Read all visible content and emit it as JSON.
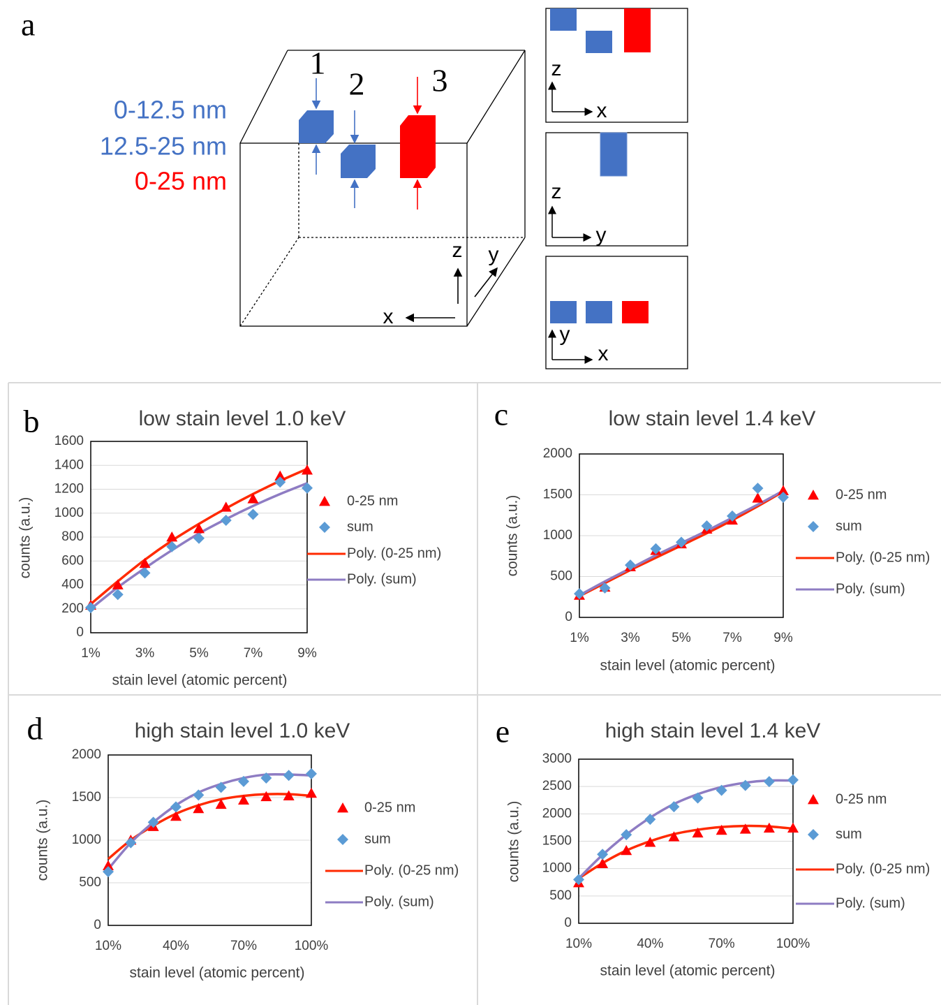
{
  "diagram": {
    "label": "a",
    "markers": [
      "1",
      "2",
      "3"
    ],
    "depth_ranges": [
      "0-12.5 nm",
      "12.5-25 nm",
      "0-25 nm"
    ],
    "cube_axes": [
      "z",
      "y",
      "x"
    ],
    "views": [
      [
        "z",
        "x"
      ],
      [
        "z",
        "y"
      ],
      [
        "y",
        "x"
      ]
    ]
  },
  "chart_data": [
    {
      "type": "scatter-trend",
      "label": "b",
      "title": "low stain level 1.0 keV",
      "x_label": "stain level (atomic percent)",
      "y_label": "counts (a.u.)",
      "categories": [
        "1%",
        null,
        "3%",
        null,
        "5%",
        null,
        "7%",
        null,
        "9%"
      ],
      "ylim": [
        0,
        1600
      ],
      "yticks": [
        0,
        200,
        400,
        600,
        800,
        1000,
        1200,
        1400,
        1600
      ],
      "grid": true,
      "series": [
        {
          "name": "0-25 nm",
          "color": "#ff0000",
          "marker": "triangle",
          "values": [
            230,
            400,
            580,
            800,
            870,
            1050,
            1120,
            1310,
            1360
          ]
        },
        {
          "name": "sum",
          "color": "#5b9bd5",
          "marker": "diamond",
          "values": [
            210,
            320,
            500,
            720,
            790,
            940,
            990,
            1260,
            1210
          ]
        },
        {
          "name": "Poly. (0-25 nm)",
          "color": "#ff2a00",
          "marker": "line",
          "values": [
            240,
            430,
            610,
            770,
            910,
            1040,
            1160,
            1270,
            1370
          ]
        },
        {
          "name": "Poly. (sum)",
          "color": "#8e7cc3",
          "marker": "line",
          "values": [
            200,
            380,
            540,
            690,
            830,
            950,
            1060,
            1160,
            1250
          ]
        }
      ]
    },
    {
      "type": "scatter-trend",
      "label": "c",
      "title": "low stain level 1.4 keV",
      "x_label": "stain level (atomic percent)",
      "y_label": "counts (a.u.)",
      "categories": [
        "1%",
        null,
        "3%",
        null,
        "5%",
        null,
        "7%",
        null,
        "9%"
      ],
      "ylim": [
        0,
        2000
      ],
      "yticks": [
        0,
        500,
        1000,
        1500,
        2000
      ],
      "grid": true,
      "series": [
        {
          "name": "0-25 nm",
          "color": "#ff0000",
          "marker": "triangle",
          "values": [
            270,
            370,
            620,
            820,
            900,
            1080,
            1190,
            1460,
            1550
          ]
        },
        {
          "name": "sum",
          "color": "#5b9bd5",
          "marker": "diamond",
          "values": [
            290,
            360,
            640,
            840,
            920,
            1120,
            1240,
            1580,
            1470
          ]
        },
        {
          "name": "Poly. (0-25 nm)",
          "color": "#ff2a00",
          "marker": "line",
          "values": [
            260,
            420,
            580,
            730,
            880,
            1030,
            1190,
            1360,
            1540
          ]
        },
        {
          "name": "Poly. (sum)",
          "color": "#8e7cc3",
          "marker": "line",
          "values": [
            270,
            440,
            600,
            760,
            910,
            1060,
            1220,
            1380,
            1550
          ]
        }
      ]
    },
    {
      "type": "scatter-trend",
      "label": "d",
      "title": "high stain level 1.0 keV",
      "x_label": "stain level (atomic percent)",
      "y_label": "counts (a.u.)",
      "categories": [
        "10%",
        null,
        null,
        "40%",
        null,
        null,
        "70%",
        null,
        null,
        "100%"
      ],
      "ylim": [
        0,
        2000
      ],
      "yticks": [
        0,
        500,
        1000,
        1500,
        2000
      ],
      "grid": true,
      "series": [
        {
          "name": "0-25 nm",
          "color": "#ff0000",
          "marker": "triangle",
          "values": [
            700,
            1000,
            1160,
            1280,
            1370,
            1420,
            1470,
            1510,
            1520,
            1550
          ]
        },
        {
          "name": "sum",
          "color": "#5b9bd5",
          "marker": "diamond",
          "values": [
            630,
            970,
            1210,
            1390,
            1530,
            1620,
            1690,
            1730,
            1760,
            1780
          ]
        },
        {
          "name": "Poly. (0-25 nm)",
          "color": "#ff2a00",
          "marker": "line",
          "values": [
            780,
            1000,
            1170,
            1310,
            1410,
            1480,
            1520,
            1540,
            1540,
            1520
          ]
        },
        {
          "name": "Poly. (sum)",
          "color": "#8e7cc3",
          "marker": "line",
          "values": [
            660,
            970,
            1210,
            1410,
            1560,
            1660,
            1730,
            1770,
            1770,
            1760
          ]
        }
      ]
    },
    {
      "type": "scatter-trend",
      "label": "e",
      "title": "high stain level 1.4 keV",
      "x_label": "stain level (atomic percent)",
      "y_label": "counts (a.u.)",
      "categories": [
        "10%",
        null,
        null,
        "40%",
        null,
        null,
        "70%",
        null,
        null,
        "100%"
      ],
      "ylim": [
        0,
        3000
      ],
      "yticks": [
        0,
        500,
        1000,
        1500,
        2000,
        2500,
        3000
      ],
      "grid": true,
      "series": [
        {
          "name": "0-25 nm",
          "color": "#ff0000",
          "marker": "triangle",
          "values": [
            740,
            1090,
            1330,
            1480,
            1580,
            1650,
            1700,
            1720,
            1740,
            1740
          ]
        },
        {
          "name": "sum",
          "color": "#5b9bd5",
          "marker": "diamond",
          "values": [
            800,
            1260,
            1620,
            1900,
            2130,
            2290,
            2430,
            2520,
            2590,
            2620
          ]
        },
        {
          "name": "Poly. (0-25 nm)",
          "color": "#ff2a00",
          "marker": "line",
          "values": [
            820,
            1100,
            1330,
            1500,
            1630,
            1710,
            1760,
            1780,
            1770,
            1730
          ]
        },
        {
          "name": "Poly. (sum)",
          "color": "#8e7cc3",
          "marker": "line",
          "values": [
            820,
            1250,
            1620,
            1930,
            2180,
            2360,
            2490,
            2570,
            2610,
            2610
          ]
        }
      ]
    }
  ]
}
